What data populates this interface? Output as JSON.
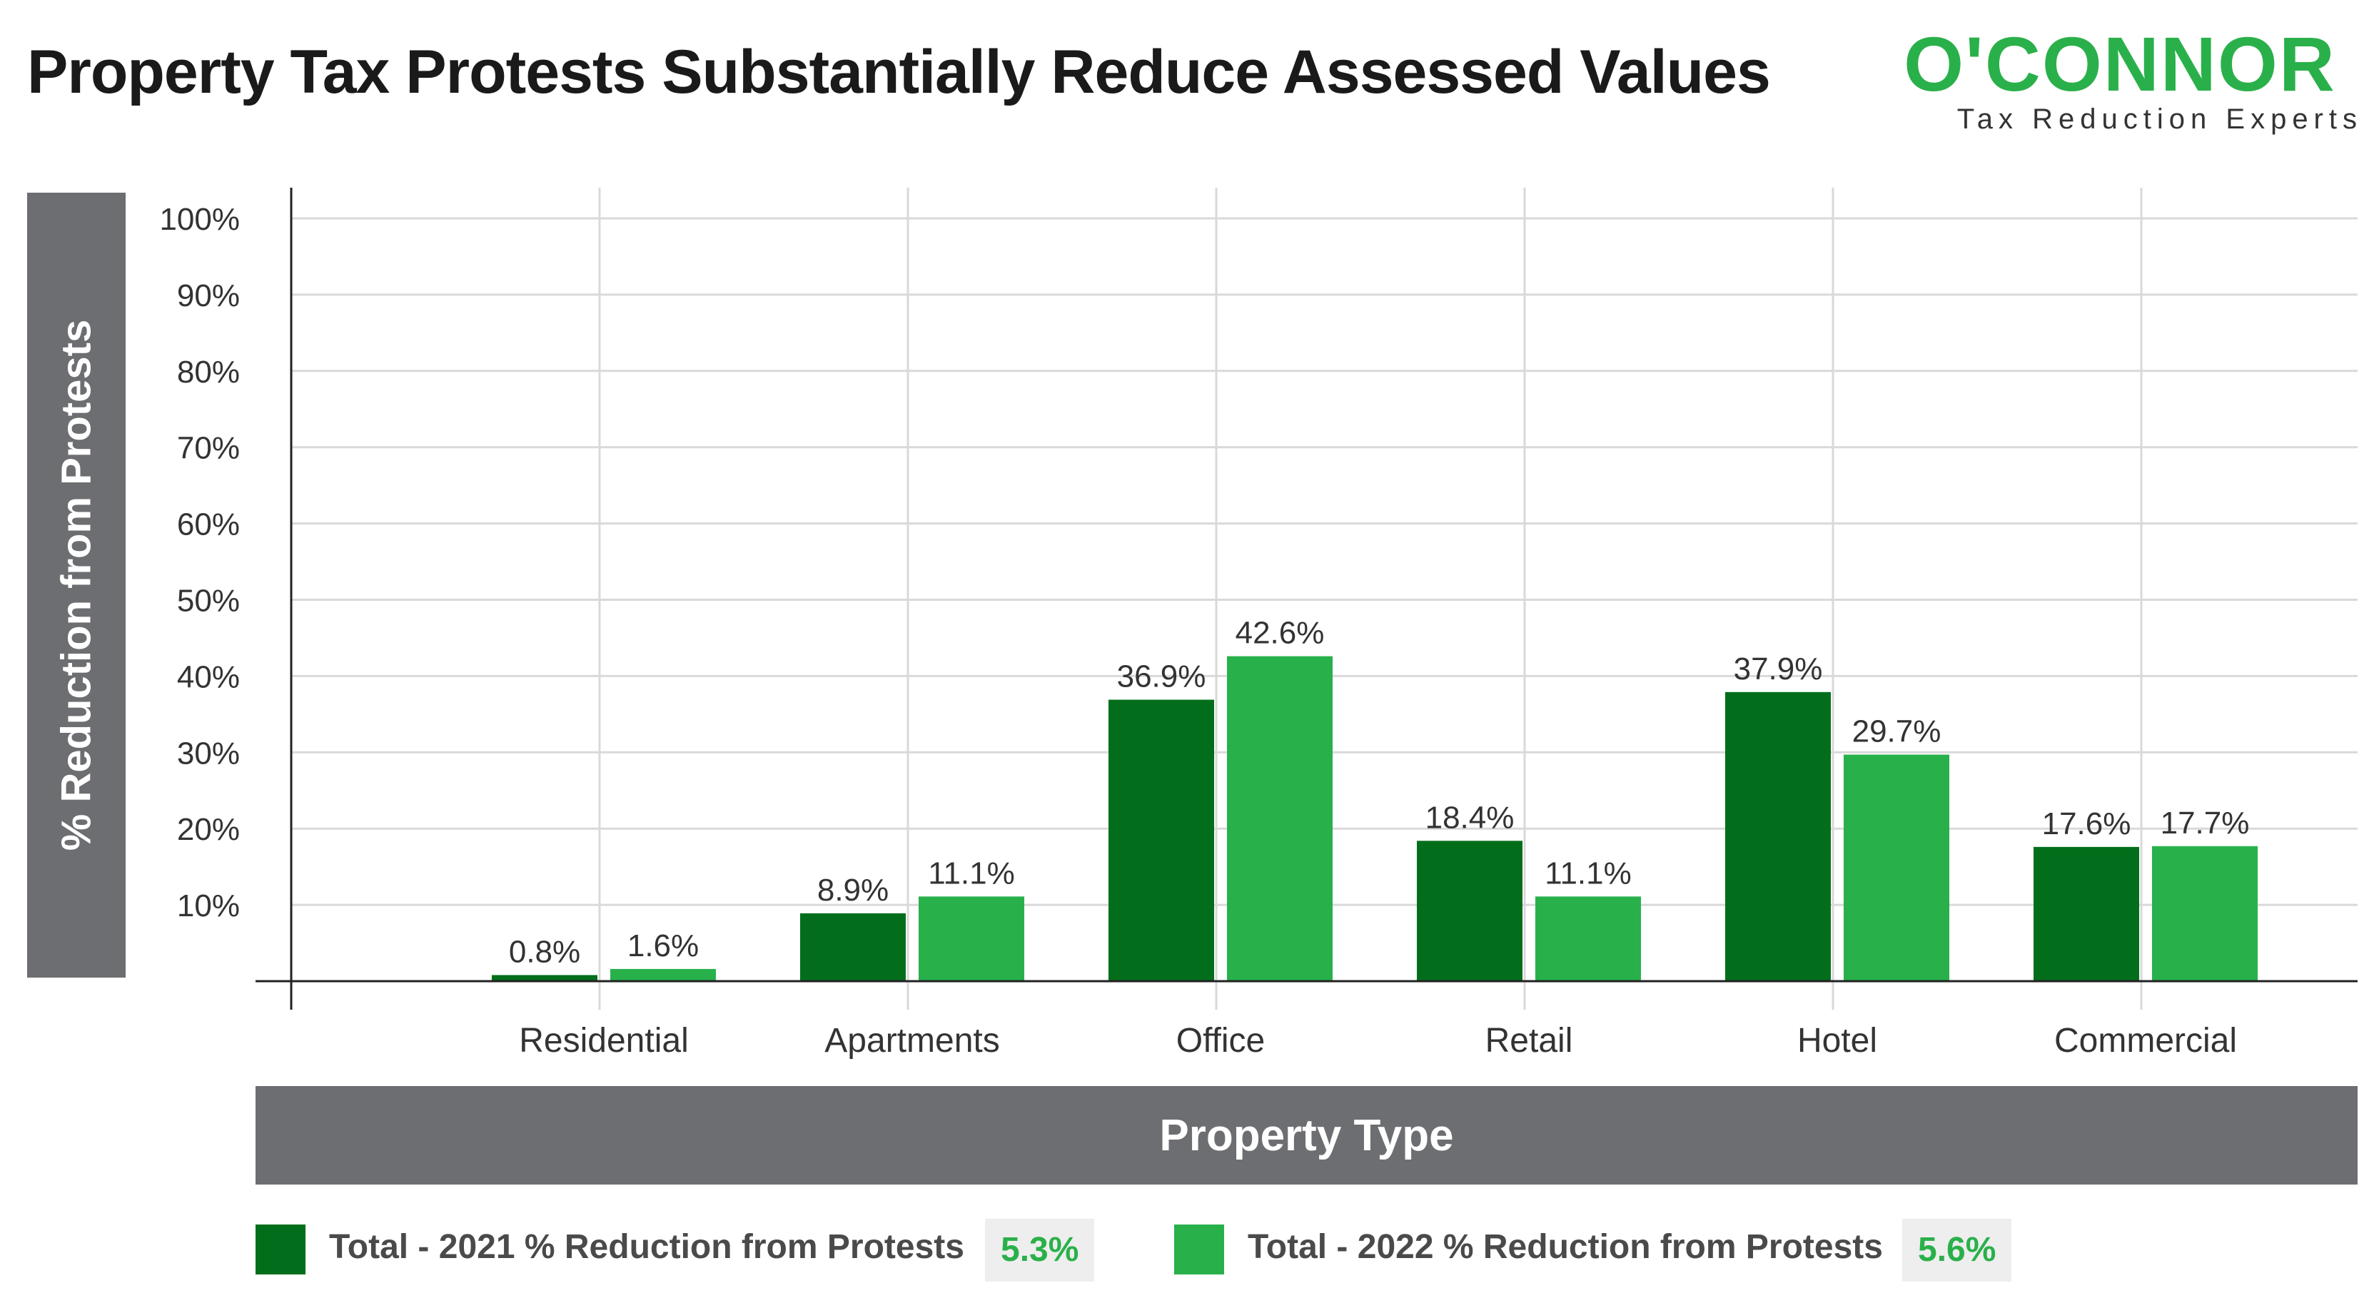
{
  "colors": {
    "series_2021": "#026e1b",
    "series_2022": "#28b04b",
    "band": "#6d6e71",
    "grid": "#d9d9d9",
    "axis": "#222222",
    "text": "#333333",
    "logo_green": "#2ab04a"
  },
  "logo": {
    "name": "O'CONNOR",
    "tagline": "Tax Reduction Experts"
  },
  "legend": {
    "items": [
      {
        "label": "Total - 2021 % Reduction from Protests",
        "total": "5.3%"
      },
      {
        "label": "Total - 2022 % Reduction from Protests",
        "total": "5.6%"
      }
    ]
  },
  "chart_data": {
    "type": "bar",
    "title": "Property Tax Protests Substantially Reduce Assessed Values",
    "xlabel": "Property Type",
    "ylabel": "% Reduction from Protests",
    "ylim": [
      0,
      100
    ],
    "yticks": [
      "10%",
      "20%",
      "30%",
      "40%",
      "50%",
      "60%",
      "70%",
      "80%",
      "90%",
      "100%"
    ],
    "grid": true,
    "legend_position": "bottom",
    "categories": [
      "Residential",
      "Apartments",
      "Office",
      "Retail",
      "Hotel",
      "Commercial"
    ],
    "series": [
      {
        "name": "Total - 2021 % Reduction from Protests",
        "values": [
          0.8,
          8.9,
          36.9,
          18.4,
          37.9,
          17.6
        ],
        "labels": [
          "0.8%",
          "8.9%",
          "36.9%",
          "18.4%",
          "37.9%",
          "17.6%"
        ]
      },
      {
        "name": "Total - 2022 % Reduction from Protests",
        "values": [
          1.6,
          11.1,
          42.6,
          11.1,
          29.7,
          17.7
        ],
        "labels": [
          "1.6%",
          "11.1%",
          "42.6%",
          "11.1%",
          "29.7%",
          "17.7%"
        ]
      }
    ]
  }
}
